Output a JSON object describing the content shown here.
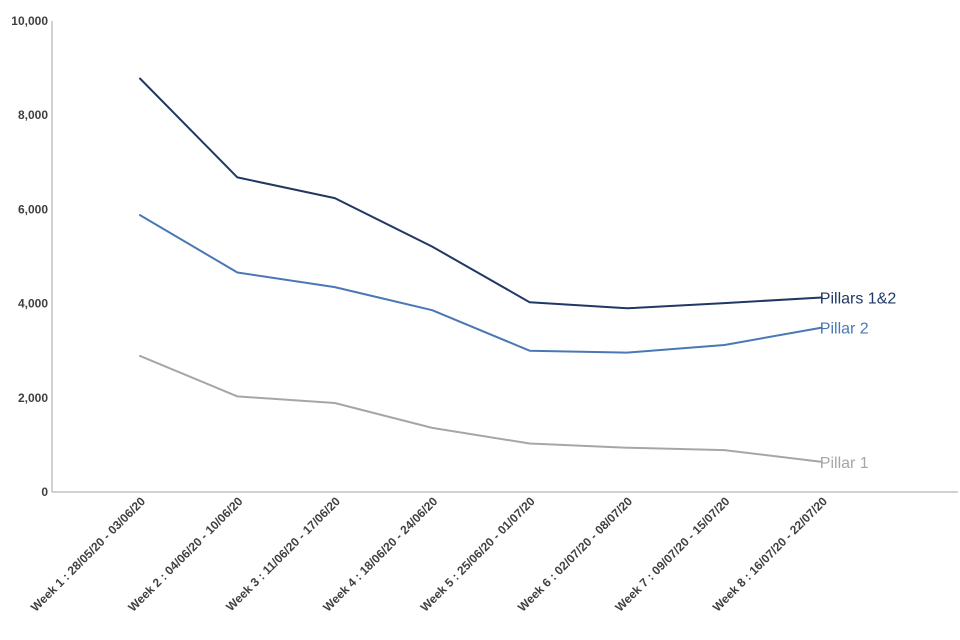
{
  "chart_data": {
    "type": "line",
    "title": "",
    "xlabel": "",
    "ylabel": "",
    "ylim": [
      0,
      10000
    ],
    "yticks": [
      "0",
      "2,000",
      "4,000",
      "6,000",
      "8,000",
      "10,000"
    ],
    "grid": false,
    "legend": "inline labels at line ends",
    "categories": [
      "Week 1 : 28/05/20 - 03/06/20",
      "Week 2 : 04/06/20 - 10/06/20",
      "Week 3 : 11/06/20 - 17/06/20",
      "Week 4 : 18/06/20 - 24/06/20",
      "Week 5 : 25/06/20 - 01/07/20",
      "Week 6 : 02/07/20 - 08/07/20",
      "Week 7 : 09/07/20 - 15/07/20",
      "Week 8 : 16/07/20 - 22/07/20"
    ],
    "series": [
      {
        "name": "Pillars 1&2",
        "color": "#1f3864",
        "values": [
          8780,
          6680,
          6240,
          5210,
          4030,
          3900,
          4010,
          4130
        ]
      },
      {
        "name": "Pillar 2",
        "color": "#4a78b5",
        "values": [
          5880,
          4660,
          4350,
          3860,
          3000,
          2960,
          3120,
          3490
        ]
      },
      {
        "name": "Pillar 1",
        "color": "#a6a6a6",
        "values": [
          2890,
          2030,
          1890,
          1360,
          1030,
          940,
          890,
          640
        ]
      }
    ]
  }
}
